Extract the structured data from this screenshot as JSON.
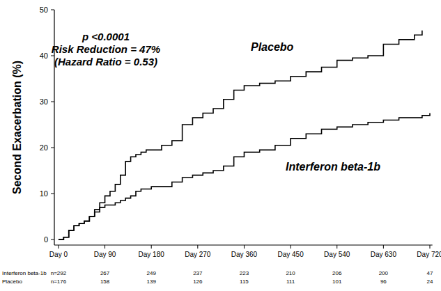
{
  "chart_data": {
    "type": "line",
    "y_label": "Second Exacerbation (%)",
    "annotations": [
      "p <0.0001",
      "Risk Reduction = 47%",
      "(Hazard Ratio = 0.53)"
    ],
    "x": [
      0,
      10,
      20,
      30,
      40,
      50,
      60,
      70,
      80,
      90,
      100,
      110,
      120,
      130,
      140,
      150,
      160,
      170,
      180,
      200,
      220,
      240,
      260,
      280,
      300,
      320,
      340,
      360,
      390,
      420,
      450,
      480,
      510,
      540,
      570,
      600,
      630,
      660,
      690,
      705,
      720
    ],
    "series": [
      {
        "name": "Placebo",
        "color": "#000000",
        "line_style": "step",
        "values": [
          0,
          0.5,
          2,
          3,
          3.5,
          4,
          5,
          6.5,
          8,
          9.5,
          10.5,
          12,
          14,
          17,
          18,
          18.5,
          19,
          19.5,
          19.5,
          20.5,
          21.5,
          25,
          26.5,
          27.5,
          28.5,
          30.5,
          32.5,
          33.5,
          34,
          34.5,
          35.5,
          36.5,
          37.5,
          39,
          39.5,
          40,
          42.5,
          43.5,
          44.5,
          45.5,
          null
        ]
      },
      {
        "name": "Interferon beta-1b",
        "color": "#000000",
        "line_style": "step",
        "values": [
          0,
          0.5,
          2,
          3,
          3.5,
          4,
          5,
          6,
          7,
          7.5,
          7.5,
          8,
          8.5,
          9,
          9.5,
          10.5,
          11,
          11,
          11.5,
          11.5,
          12.5,
          13.5,
          14,
          14.5,
          15,
          16,
          18,
          19,
          19.5,
          20.5,
          22,
          23,
          24,
          24.5,
          25,
          25.5,
          26,
          26.5,
          26.5,
          27,
          27.5
        ]
      }
    ],
    "xlim": [
      -8,
      725
    ],
    "ylim": [
      -1.2,
      50
    ],
    "xticks": [
      {
        "value": 0,
        "label": "Day 0"
      },
      {
        "value": 90,
        "label": "Day 90"
      },
      {
        "value": 180,
        "label": "Day 180"
      },
      {
        "value": 270,
        "label": "Day 270"
      },
      {
        "value": 360,
        "label": "Day 360"
      },
      {
        "value": 450,
        "label": "Day 450"
      },
      {
        "value": 540,
        "label": "Day 540"
      },
      {
        "value": 630,
        "label": "Day 630"
      },
      {
        "value": 720,
        "label": "Day 720"
      }
    ],
    "yticks": [
      0,
      10,
      20,
      30,
      40,
      50
    ],
    "grid": false,
    "risk_table": {
      "rows": [
        {
          "name": "Interferon beta-1b",
          "n_label": "n=292",
          "values": [
            267,
            249,
            237,
            223,
            210,
            206,
            200,
            47
          ]
        },
        {
          "name": "Placebo",
          "n_label": "n=176",
          "values": [
            158,
            139,
            126,
            115,
            111,
            101,
            96,
            24
          ]
        }
      ]
    }
  }
}
